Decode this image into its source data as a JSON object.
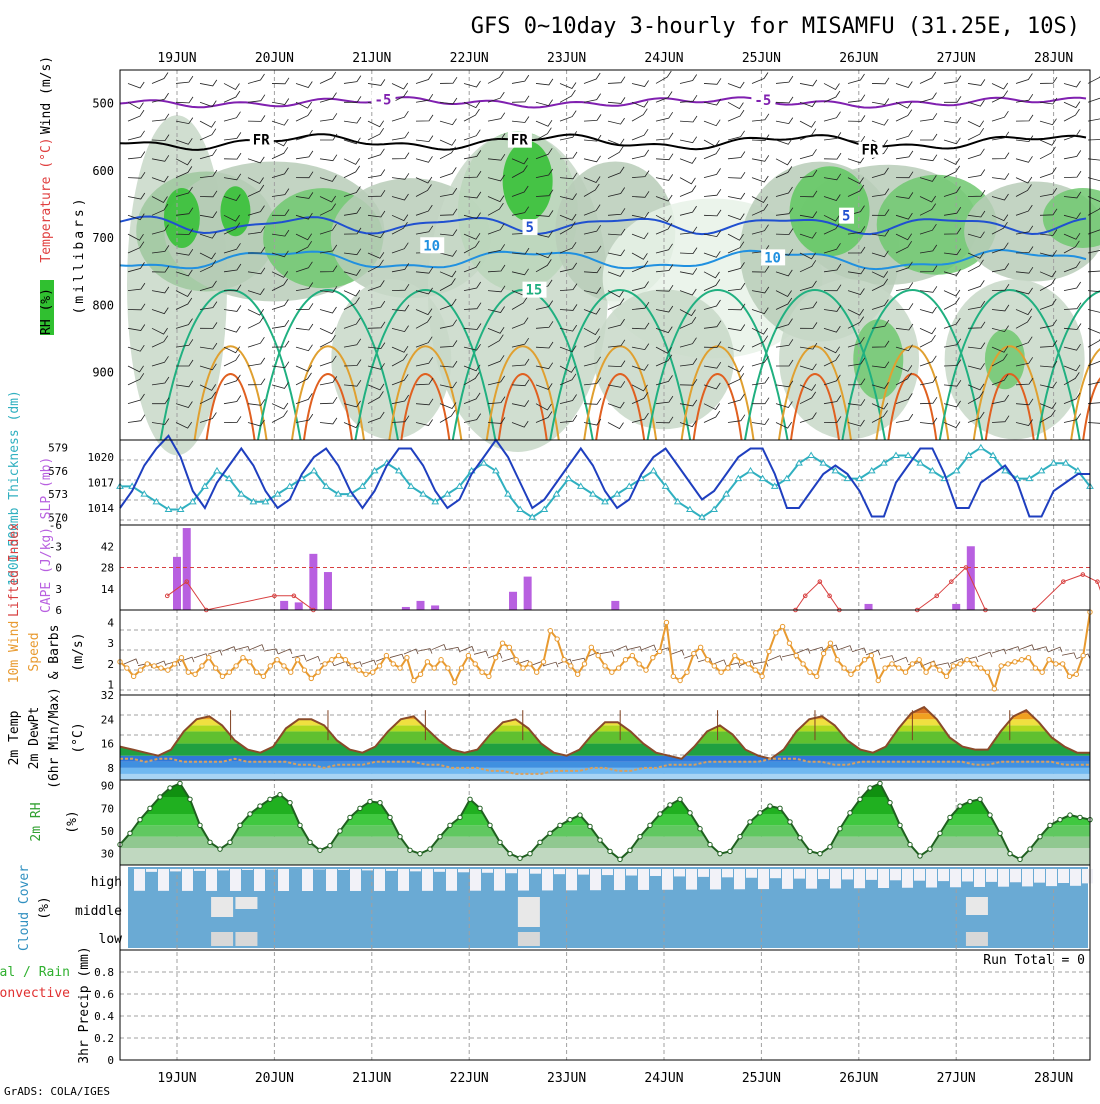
{
  "title": "GFS 0~10day 3-hourly for MISAMFU (31.25E, 10S)",
  "footer": "GrADS: COLA/IGES",
  "date_labels": [
    "19JUN",
    "20JUN",
    "21JUN",
    "22JUN",
    "23JUN",
    "24JUN",
    "25JUN",
    "26JUN",
    "27JUN",
    "28JUN"
  ],
  "colors": {
    "grid": "#a0a0a0",
    "slp": "#1f3fbf",
    "thickness": "#30b0c0",
    "lifted": "#d84040",
    "cape": "#b860e0",
    "wind10": "#e89a30",
    "barb": "#6a4a3a",
    "rh_green": "#30c030"
  },
  "chart_data": [
    {
      "type": "heatmap",
      "name": "upper-air",
      "ylabel_parts": [
        "Wind (m/s)",
        "Temperature (°C)",
        "(millibars)"
      ],
      "rh_label": "RH (%)",
      "yticks": [
        500,
        600,
        700,
        800,
        900
      ],
      "ylim": [
        1000,
        450
      ],
      "freezing_label": "FR",
      "isotherm_labels": [
        {
          "text": "-5",
          "day": 2.1,
          "p": 495,
          "color": "#8020b0"
        },
        {
          "text": "-5",
          "day": 6.0,
          "p": 496,
          "color": "#8020b0"
        },
        {
          "text": "FR",
          "day": 0.85,
          "p": 555,
          "color": "#000000"
        },
        {
          "text": "FR",
          "day": 3.5,
          "p": 555,
          "color": "#000000"
        },
        {
          "text": "FR",
          "day": 7.1,
          "p": 570,
          "color": "#000000"
        },
        {
          "text": "5",
          "day": 3.65,
          "p": 685,
          "color": "#2050d0"
        },
        {
          "text": "5",
          "day": 6.9,
          "p": 668,
          "color": "#2050d0"
        },
        {
          "text": "10",
          "day": 2.6,
          "p": 712,
          "color": "#2090e0"
        },
        {
          "text": "10",
          "day": 6.1,
          "p": 730,
          "color": "#2090e0"
        },
        {
          "text": "15",
          "day": 3.65,
          "p": 778,
          "color": "#20b080"
        }
      ]
    },
    {
      "type": "line",
      "name": "slp-thickness",
      "ylabel_left": "1000-500mb Thickness (dm)",
      "ylabel_right": "SLP (mb)",
      "thickness_ticks": [
        570,
        573,
        576,
        579
      ],
      "slp_ticks": [
        1014,
        1017,
        1020
      ],
      "slp_ylim": [
        1012,
        1022
      ],
      "thickness_ylim": [
        569,
        580
      ],
      "slp": [
        1014,
        1016,
        1019,
        1021,
        1022.5,
        1020,
        1016,
        1014,
        1017,
        1019,
        1021,
        1019,
        1016,
        1014,
        1015,
        1018,
        1020,
        1021,
        1019,
        1016,
        1014,
        1016,
        1019,
        1021,
        1021,
        1019,
        1016,
        1014,
        1015,
        1018,
        1020,
        1022,
        1020,
        1017,
        1014,
        1015,
        1017,
        1019,
        1021,
        1019,
        1016,
        1014,
        1015,
        1018,
        1020,
        1021,
        1019,
        1017,
        1015,
        1016,
        1018,
        1020,
        1021,
        1021,
        1018,
        1014,
        1014,
        1016,
        1018,
        1019,
        1018,
        1016,
        1013,
        1013,
        1017,
        1019,
        1021,
        1021,
        1018,
        1014,
        1014,
        1017,
        1018,
        1019,
        1017,
        1013,
        1013,
        1016,
        1017,
        1018,
        1018
      ],
      "thickness": [
        574,
        574,
        573,
        572,
        571,
        571,
        572,
        574,
        576,
        575,
        573,
        572,
        572,
        573,
        574,
        575,
        576,
        574,
        573,
        573,
        574,
        576,
        577,
        576,
        574,
        573,
        572,
        573,
        574,
        576,
        577,
        576,
        573,
        571,
        570,
        571,
        573,
        575,
        574,
        573,
        572,
        573,
        574,
        575,
        576,
        574,
        572,
        571,
        570,
        571,
        573,
        575,
        576,
        575,
        574,
        575,
        577,
        578,
        577,
        576,
        575,
        575,
        576,
        577,
        578,
        578,
        577,
        576,
        575,
        576,
        578,
        579,
        578,
        576,
        575,
        575,
        576,
        577,
        577,
        576,
        574
      ]
    },
    {
      "type": "bar",
      "name": "lifted-cape",
      "ylabel_left": "Lifted Index",
      "ylabel_right": "CAPE (J/kg)",
      "lifted_ticks": [
        -6,
        -3,
        0,
        3,
        6
      ],
      "cape_ticks": [
        14,
        28,
        42
      ],
      "cape_ylim": [
        0,
        56
      ],
      "lifted_ylim": [
        -6,
        6
      ],
      "cape": [
        {
          "day": 0.0,
          "v": 35
        },
        {
          "day": 0.1,
          "v": 54
        },
        {
          "day": 1.1,
          "v": 6
        },
        {
          "day": 1.25,
          "v": 5
        },
        {
          "day": 1.4,
          "v": 37
        },
        {
          "day": 1.55,
          "v": 25
        },
        {
          "day": 2.35,
          "v": 2
        },
        {
          "day": 2.5,
          "v": 6
        },
        {
          "day": 2.65,
          "v": 3
        },
        {
          "day": 3.45,
          "v": 12
        },
        {
          "day": 3.6,
          "v": 22
        },
        {
          "day": 4.5,
          "v": 6
        },
        {
          "day": 7.1,
          "v": 4
        },
        {
          "day": 8.0,
          "v": 4
        },
        {
          "day": 8.15,
          "v": 42
        }
      ],
      "lifted": [
        {
          "day": -0.1,
          "v": 4
        },
        {
          "day": 0.1,
          "v": 2
        },
        {
          "day": 0.3,
          "v": 6
        },
        {
          "day": 1.0,
          "v": 4
        },
        {
          "day": 1.2,
          "v": 4
        },
        {
          "day": 1.4,
          "v": 6
        },
        {
          "day": 6.35,
          "v": 6
        },
        {
          "day": 6.45,
          "v": 4
        },
        {
          "day": 6.6,
          "v": 2
        },
        {
          "day": 6.7,
          "v": 4
        },
        {
          "day": 6.8,
          "v": 6
        },
        {
          "day": 7.6,
          "v": 6
        },
        {
          "day": 7.8,
          "v": 4
        },
        {
          "day": 7.95,
          "v": 2
        },
        {
          "day": 8.1,
          "v": 0
        },
        {
          "day": 8.3,
          "v": 6
        },
        {
          "day": 8.8,
          "v": 6
        },
        {
          "day": 9.1,
          "v": 2
        },
        {
          "day": 9.3,
          "v": 1
        },
        {
          "day": 9.45,
          "v": 2
        },
        {
          "day": 9.55,
          "v": 6
        }
      ]
    },
    {
      "type": "line",
      "name": "wind10m",
      "ylabel_parts": [
        "10m Wind",
        "Speed",
        "& Barbs",
        "(m/s)"
      ],
      "yticks": [
        1,
        2,
        3,
        4
      ],
      "ylim": [
        0.5,
        4.6
      ],
      "speed": [
        2.1,
        1.8,
        1.4,
        1.7,
        2.0,
        1.9,
        1.8,
        1.7,
        2.0,
        2.3,
        1.6,
        1.5,
        1.9,
        2.3,
        1.8,
        1.4,
        1.6,
        1.9,
        2.3,
        2.1,
        1.6,
        1.4,
        1.9,
        2.2,
        1.9,
        1.6,
        2.2,
        1.7,
        1.3,
        1.6,
        2.0,
        2.2,
        2.4,
        2.2,
        1.9,
        1.7,
        1.5,
        1.6,
        1.9,
        2.4,
        2.0,
        1.8,
        2.3,
        1.2,
        1.5,
        2.1,
        1.8,
        2.2,
        1.8,
        1.1,
        1.8,
        2.4,
        2.0,
        1.6,
        1.4,
        2.3,
        3.0,
        2.8,
        2.2,
        1.8,
        2.0,
        1.6,
        2.1,
        3.6,
        3.2,
        2.2,
        1.9,
        1.5,
        2.0,
        2.8,
        2.4,
        1.9,
        1.6,
        1.8,
        2.2,
        2.4,
        2.0,
        1.7,
        2.3,
        2.6,
        4.0,
        1.4,
        1.2,
        1.6,
        2.5,
        2.8,
        2.2,
        1.9,
        1.6,
        1.8,
        2.4,
        2.1,
        2.0,
        1.7,
        1.4,
        2.6,
        3.5,
        3.8,
        3.0,
        2.4,
        2.0,
        1.6,
        1.4,
        2.5,
        3.0,
        2.2,
        1.8,
        1.5,
        1.8,
        2.2,
        2.4,
        1.2,
        1.8,
        2.0,
        1.8,
        1.6,
        2.0,
        2.2,
        1.6,
        2.0,
        1.7,
        1.4,
        1.9,
        2.0,
        2.2,
        2.0,
        1.8,
        1.6,
        0.8,
        1.9,
        2.0,
        2.1,
        2.2,
        2.3,
        1.8,
        1.6,
        2.2,
        2.0,
        2.0,
        1.4,
        1.5,
        2.4,
        4.5
      ]
    },
    {
      "type": "area",
      "name": "temp2m",
      "ylabel_parts": [
        "2m Temp",
        "2m DewPt",
        "(6hr Min/Max)",
        "(°C)"
      ],
      "yticks": [
        8,
        16,
        24,
        32
      ],
      "ylim": [
        4,
        32
      ],
      "temp": [
        15,
        14,
        13,
        12,
        14,
        20,
        24,
        25,
        22,
        17,
        14,
        13,
        15,
        21,
        24,
        24,
        22,
        17,
        14,
        13,
        15,
        20,
        24,
        25,
        21,
        17,
        14,
        13,
        14,
        19,
        23,
        24,
        21,
        16,
        13,
        12,
        14,
        19,
        23,
        23,
        20,
        16,
        13,
        12,
        11,
        15,
        20,
        22,
        19,
        14,
        12,
        11,
        14,
        20,
        24,
        25,
        22,
        17,
        14,
        13,
        15,
        21,
        26,
        28,
        24,
        18,
        15,
        14,
        14,
        20,
        25,
        27,
        23,
        18,
        15,
        13,
        13
      ],
      "dewpoint": [
        11,
        11,
        10,
        11,
        11,
        10,
        10,
        10,
        10,
        11,
        10,
        10,
        10,
        10,
        9,
        9,
        8,
        9,
        9,
        9,
        10,
        10,
        10,
        10,
        9,
        9,
        8,
        8,
        8,
        7,
        7,
        6,
        6,
        6,
        7,
        7,
        7,
        8,
        8,
        7,
        7,
        8,
        8,
        9,
        9,
        9,
        10,
        10,
        10,
        10,
        10,
        11,
        11,
        11,
        10,
        10,
        9,
        9,
        10,
        10,
        10,
        10,
        10,
        10,
        10,
        10,
        10,
        9,
        9,
        10,
        10,
        10,
        10,
        10,
        9,
        9,
        9
      ]
    },
    {
      "type": "area",
      "name": "rh2m",
      "ylabel_parts": [
        "2m RH",
        "(%)"
      ],
      "yticks": [
        30,
        50,
        70,
        90
      ],
      "ylim": [
        20,
        95
      ],
      "rh": [
        38,
        48,
        60,
        70,
        80,
        88,
        92,
        78,
        55,
        40,
        34,
        40,
        55,
        65,
        72,
        78,
        82,
        75,
        55,
        40,
        33,
        37,
        50,
        62,
        70,
        76,
        75,
        62,
        45,
        33,
        30,
        34,
        45,
        55,
        62,
        78,
        70,
        55,
        40,
        30,
        26,
        30,
        40,
        48,
        55,
        60,
        64,
        54,
        42,
        32,
        25,
        33,
        45,
        55,
        65,
        73,
        78,
        66,
        52,
        38,
        30,
        32,
        45,
        58,
        66,
        72,
        70,
        58,
        44,
        32,
        30,
        36,
        52,
        66,
        78,
        88,
        92,
        75,
        55,
        38,
        28,
        34,
        48,
        62,
        72,
        76,
        78,
        64,
        48,
        30,
        25,
        34,
        45,
        55,
        60,
        64,
        62,
        60
      ]
    },
    {
      "type": "bar",
      "name": "cloud-cover",
      "ylabel_parts": [
        "Cloud Cover",
        "(%)"
      ],
      "levels": [
        "high",
        "middle",
        "low"
      ]
    },
    {
      "type": "bar",
      "name": "precip",
      "ylabel_left_parts": [
        "Total / Rain",
        "Convective"
      ],
      "ylabel": "3hr Precip (mm)",
      "yticks": [
        "0",
        "0.2",
        "0.4",
        "0.6",
        "0.8"
      ],
      "ylim": [
        0,
        1
      ],
      "run_total": "Run Total = 0",
      "values": []
    }
  ]
}
